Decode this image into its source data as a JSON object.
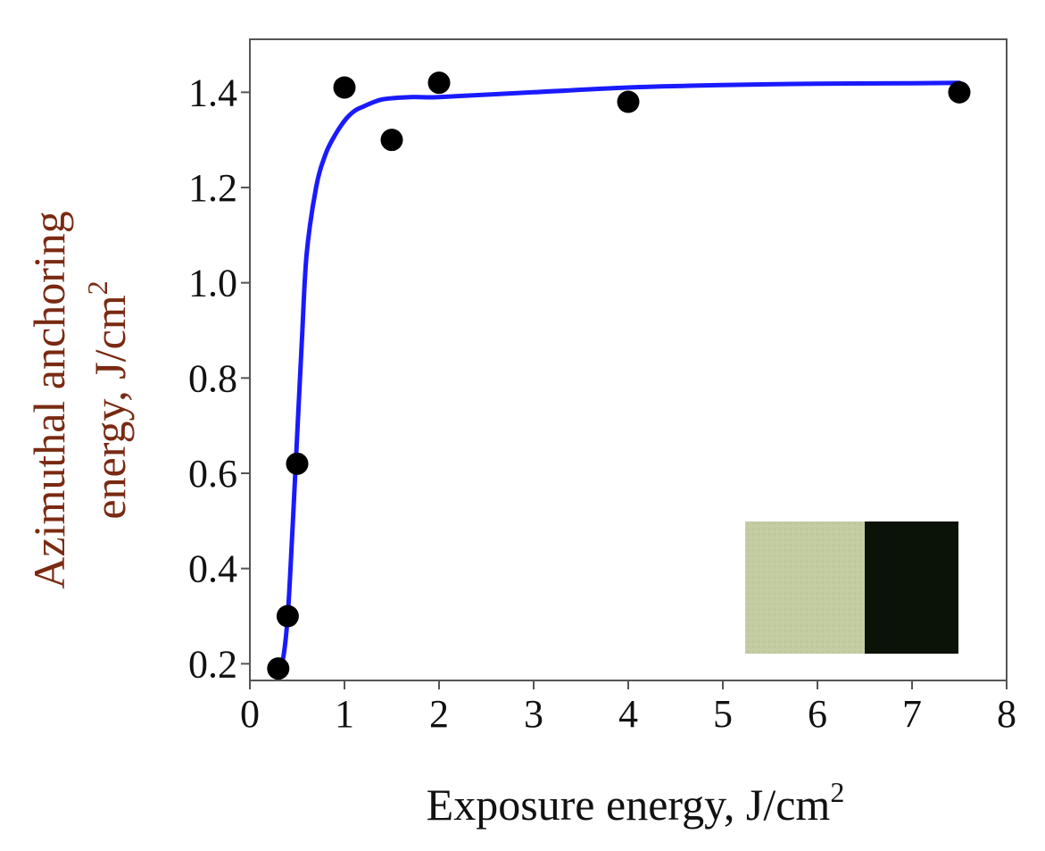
{
  "chart_data": {
    "type": "scatter",
    "title": "",
    "xlabel": "Exposure energy, J/cm",
    "xlabel_sup": "2",
    "ylabel_line1": "Azimuthal anchoring",
    "ylabel_line2": "energy, J/cm",
    "ylabel_sup": "2",
    "xlim": [
      0,
      8
    ],
    "ylim": [
      0.18,
      1.5
    ],
    "xticks": [
      0,
      1,
      2,
      3,
      4,
      5,
      6,
      7,
      8
    ],
    "yticks": [
      0.2,
      0.4,
      0.6,
      0.8,
      1.0,
      1.2,
      1.4
    ],
    "ytick_labels": [
      "0.2",
      "0.4",
      "0.6",
      "0.8",
      "1.0",
      "1.2",
      "1.4"
    ],
    "grid": false,
    "series": [
      {
        "kind": "points",
        "x": [
          0.3,
          0.4,
          0.5,
          1.0,
          1.5,
          2.0,
          4.0,
          7.5
        ],
        "y": [
          0.19,
          0.3,
          0.62,
          1.41,
          1.3,
          1.42,
          1.38,
          1.4
        ]
      },
      {
        "kind": "fit-curve",
        "x": [
          0.3,
          0.35,
          0.4,
          0.45,
          0.5,
          0.55,
          0.6,
          0.7,
          0.8,
          0.9,
          1.0,
          1.1,
          1.2,
          1.4,
          1.7,
          2.0,
          3.0,
          4.0,
          5.0,
          6.0,
          7.0,
          7.5
        ],
        "y": [
          0.19,
          0.21,
          0.3,
          0.48,
          0.68,
          0.88,
          1.06,
          1.2,
          1.27,
          1.31,
          1.34,
          1.36,
          1.37,
          1.385,
          1.39,
          1.39,
          1.4,
          1.41,
          1.415,
          1.418,
          1.419,
          1.42
        ]
      }
    ],
    "colors": {
      "points": "#000000",
      "fit_curve": "#1a1aff",
      "axis": "#555555",
      "ylabel": "#7a2a12",
      "xlabel": "#111111"
    },
    "inset": {
      "kind": "texture-photo",
      "left_color": "#c3cca0",
      "right_color": "#0b1207"
    }
  }
}
